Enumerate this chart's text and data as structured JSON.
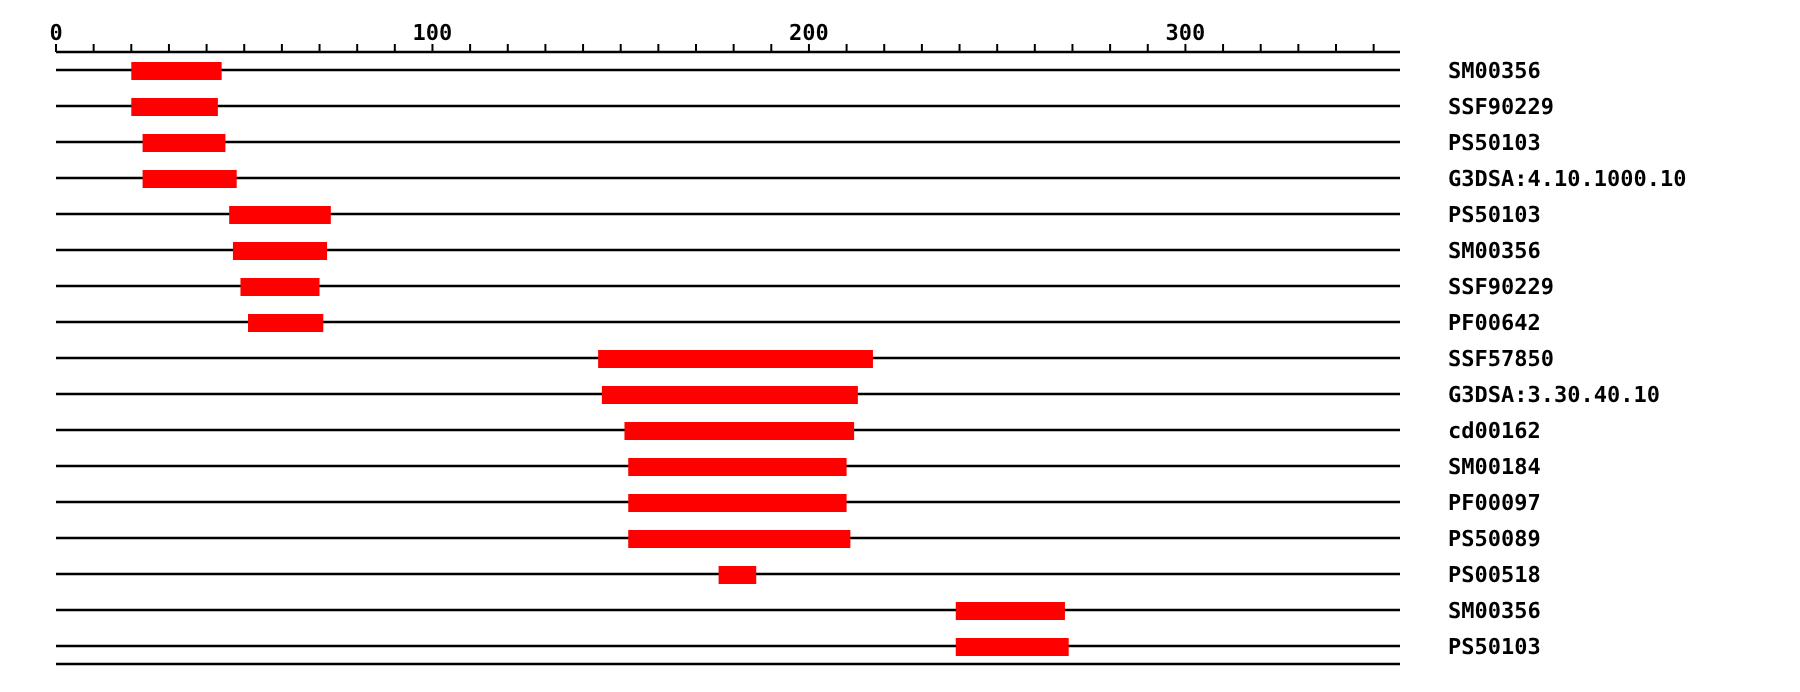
{
  "chart_data": {
    "type": "bar",
    "orientation": "horizontal",
    "grid": "y",
    "categories": [
      "SM00356",
      "SSF90229",
      "PS50103",
      "G3DSA:4.10.1000.10",
      "PS50103",
      "SM00356",
      "SSF90229",
      "PF00642",
      "SSF57850",
      "G3DSA:3.30.40.10",
      "cd00162",
      "SM00184",
      "PF00097",
      "PS50089",
      "PS00518",
      "SM00356",
      "PS50103"
    ],
    "base": [
      20,
      20,
      23,
      23,
      46,
      47,
      49,
      51,
      144,
      145,
      151,
      152,
      152,
      152,
      176,
      239,
      239
    ],
    "values": [
      24,
      23,
      22,
      25,
      27,
      25,
      21,
      20,
      73,
      68,
      61,
      58,
      58,
      59,
      10,
      29,
      30
    ],
    "color": "#ff0000",
    "xlim": [
      0,
      357
    ],
    "xticks": [
      0,
      {
        "value": 10,
        "label": null
      },
      {
        "value": 20,
        "label": null
      },
      {
        "value": 30,
        "label": null
      },
      {
        "value": 40,
        "label": null
      },
      {
        "value": 50,
        "label": null
      },
      {
        "value": 60,
        "label": null
      },
      {
        "value": 70,
        "label": null
      },
      {
        "value": 80,
        "label": null
      },
      {
        "value": 90,
        "label": null
      },
      100,
      {
        "value": 110,
        "label": null
      },
      {
        "value": 120,
        "label": null
      },
      {
        "value": 130,
        "label": null
      },
      {
        "value": 140,
        "label": null
      },
      {
        "value": 150,
        "label": null
      },
      {
        "value": 160,
        "label": null
      },
      {
        "value": 170,
        "label": null
      },
      {
        "value": 180,
        "label": null
      },
      {
        "value": 190,
        "label": null
      },
      200,
      {
        "value": 210,
        "label": null
      },
      {
        "value": 220,
        "label": null
      },
      {
        "value": 230,
        "label": null
      },
      {
        "value": 240,
        "label": null
      },
      {
        "value": 250,
        "label": null
      },
      {
        "value": 260,
        "label": null
      },
      {
        "value": 270,
        "label": null
      },
      {
        "value": 280,
        "label": null
      },
      {
        "value": 290,
        "label": null
      },
      300,
      {
        "value": 310,
        "label": null
      },
      {
        "value": 320,
        "label": null
      },
      {
        "value": 330,
        "label": null
      },
      {
        "value": 340,
        "label": null
      },
      {
        "value": 350,
        "label": null
      }
    ]
  }
}
